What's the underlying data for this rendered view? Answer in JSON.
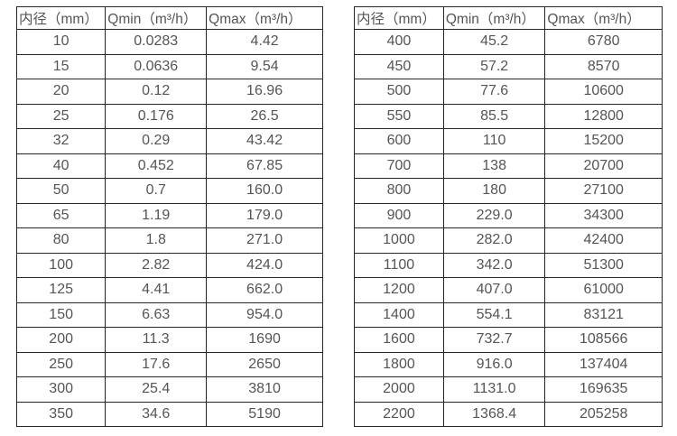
{
  "colors": {
    "background": "#ffffff",
    "table_border": "#262626",
    "table_text": "#555555"
  },
  "tables": [
    {
      "name": "flow-rate-table-left",
      "headers": [
        "内径（mm）",
        "Qmin（m³/h）",
        "Qmax（m³/h）"
      ],
      "rows": [
        [
          "10",
          "0.0283",
          "4.42"
        ],
        [
          "15",
          "0.0636",
          "9.54"
        ],
        [
          "20",
          "0.12",
          "16.96"
        ],
        [
          "25",
          "0.176",
          "26.5"
        ],
        [
          "32",
          "0.29",
          "43.42"
        ],
        [
          "40",
          "0.452",
          "67.85"
        ],
        [
          "50",
          "0.7",
          "160.0"
        ],
        [
          "65",
          "1.19",
          "179.0"
        ],
        [
          "80",
          "1.8",
          "271.0"
        ],
        [
          "100",
          "2.82",
          "424.0"
        ],
        [
          "125",
          "4.41",
          "662.0"
        ],
        [
          "150",
          "6.63",
          "954.0"
        ],
        [
          "200",
          "11.3",
          "1690"
        ],
        [
          "250",
          "17.6",
          "2650"
        ],
        [
          "300",
          "25.4",
          "3810"
        ],
        [
          "350",
          "34.6",
          "5190"
        ]
      ]
    },
    {
      "name": "flow-rate-table-right",
      "headers": [
        "内径（mm）",
        "Qmin（m³/h）",
        "Qmax（m³/h）"
      ],
      "rows": [
        [
          "400",
          "45.2",
          "6780"
        ],
        [
          "450",
          "57.2",
          "8570"
        ],
        [
          "500",
          "77.6",
          "10600"
        ],
        [
          "550",
          "85.5",
          "12800"
        ],
        [
          "600",
          "110",
          "15200"
        ],
        [
          "700",
          "138",
          "20700"
        ],
        [
          "800",
          "180",
          "27100"
        ],
        [
          "900",
          "229.0",
          "34300"
        ],
        [
          "1000",
          "282.0",
          "42400"
        ],
        [
          "1100",
          "342.0",
          "51300"
        ],
        [
          "1200",
          "407.0",
          "61000"
        ],
        [
          "1400",
          "554.1",
          "83121"
        ],
        [
          "1600",
          "732.7",
          "108566"
        ],
        [
          "1800",
          "916.0",
          "137404"
        ],
        [
          "2000",
          "1131.0",
          "169635"
        ],
        [
          "2200",
          "1368.4",
          "205258"
        ]
      ]
    }
  ]
}
